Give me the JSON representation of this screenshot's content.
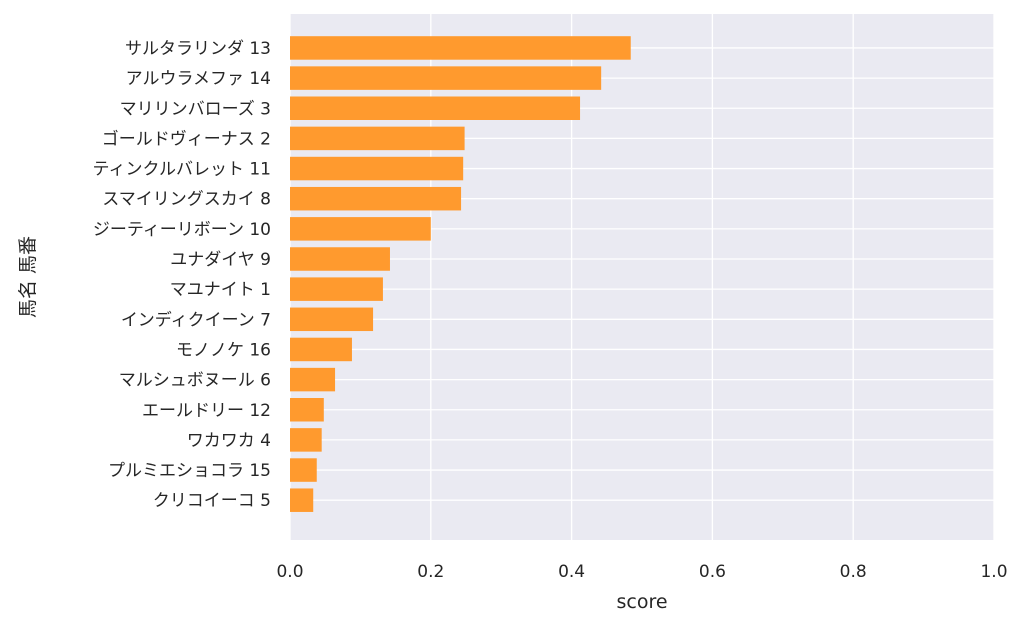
{
  "chart_data": {
    "type": "bar",
    "orientation": "horizontal",
    "title": "",
    "xlabel": "score",
    "ylabel": "馬名 馬番",
    "xlim": [
      0.0,
      1.0
    ],
    "xticks": [
      "0.0",
      "0.2",
      "0.4",
      "0.6",
      "0.8",
      "1.0"
    ],
    "grid": true,
    "bar_color": "#ff9a2e",
    "background_color": "#eaeaf2",
    "categories": [
      "サルタラリンダ 13",
      "アルウラメファ 14",
      "マリリンバローズ 3",
      "ゴールドヴィーナス 2",
      "ティンクルバレット 11",
      "スマイリングスカイ 8",
      "ジーティーリボーン 10",
      "ユナダイヤ 9",
      "マユナイト 1",
      "インディクイーン 7",
      "モノノケ 16",
      "マルシュボヌール 6",
      "エールドリー 12",
      "ワカワカ 4",
      "プルミエショコラ 15",
      "クリコイーコ 5"
    ],
    "values": [
      0.484,
      0.442,
      0.412,
      0.248,
      0.246,
      0.243,
      0.2,
      0.142,
      0.132,
      0.118,
      0.088,
      0.064,
      0.048,
      0.045,
      0.038,
      0.033
    ]
  }
}
